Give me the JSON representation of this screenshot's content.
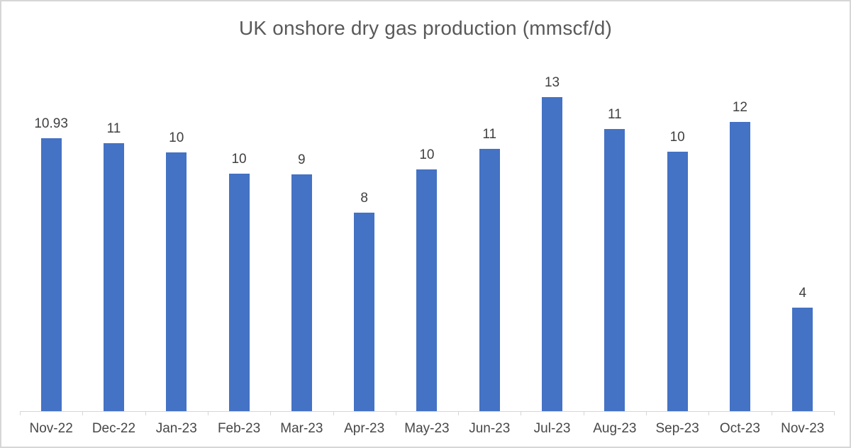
{
  "chart_data": {
    "type": "bar",
    "title": "UK onshore dry gas production (mmscf/d)",
    "categories": [
      "Nov-22",
      "Dec-22",
      "Jan-23",
      "Feb-23",
      "Mar-23",
      "Apr-23",
      "May-23",
      "Jun-23",
      "Jul-23",
      "Aug-23",
      "Sep-23",
      "Oct-23",
      "Nov-23"
    ],
    "values": [
      10.93,
      10.74,
      10.37,
      9.52,
      9.49,
      7.95,
      9.68,
      10.51,
      12.58,
      11.31,
      10.4,
      11.59,
      4.15
    ],
    "value_labels": [
      "10.93",
      "11",
      "10",
      "10",
      "9",
      "8",
      "10",
      "11",
      "13",
      "11",
      "10",
      "12",
      "4"
    ],
    "xlabel": "",
    "ylabel": "",
    "ylim": [
      0,
      14.2
    ],
    "grid": false,
    "legend": false,
    "bar_color": "#4472C4",
    "title_color": "#595959",
    "data_label_color": "#404040",
    "axis_label_color": "#474747",
    "axis_line_color": "#d6d6d6"
  }
}
